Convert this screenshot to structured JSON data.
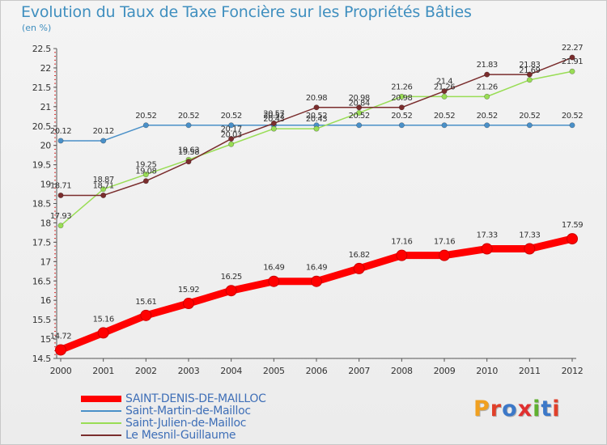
{
  "page": {
    "title": "Evolution du Taux de Taxe Foncière sur les Propriétés Bâties",
    "unit": "(en %)",
    "brand": "Proxiti",
    "brand_colors": [
      "#f0a020",
      "#e0402a",
      "#3c78c8",
      "#e03030",
      "#60b030",
      "#3c78c8",
      "#e0402a"
    ]
  },
  "chart_data": {
    "type": "line",
    "title": "Evolution du Taux de Taxe Foncière sur les Propriétés Bâties",
    "ylabel": "(en %)",
    "x": [
      "2000",
      "2001",
      "2002",
      "2003",
      "2004",
      "2005",
      "2006",
      "2007",
      "2008",
      "2009",
      "2010",
      "2011",
      "2012"
    ],
    "ylim": [
      14.5,
      22.5
    ],
    "yticks": [
      "14.5",
      "15",
      "15.5",
      "16",
      "16.5",
      "17",
      "17.5",
      "18",
      "18.5",
      "19",
      "19.5",
      "20",
      "20.5",
      "21",
      "21.5",
      "22",
      "22.5"
    ],
    "grid": false,
    "legend_position": "bottom-left",
    "series": [
      {
        "name": "SAINT-DENIS-DE-MAILLOC",
        "color": "#ff0000",
        "values": [
          14.72,
          15.16,
          15.61,
          15.92,
          16.25,
          16.49,
          16.49,
          16.82,
          17.16,
          17.16,
          17.33,
          17.33,
          17.59
        ],
        "labels": [
          "14.72",
          "15.16",
          "15.61",
          "15.92",
          "16.25",
          "16.49",
          "16.49",
          "16.82",
          "17.16",
          "17.16",
          "17.33",
          "17.33",
          "17.59"
        ]
      },
      {
        "name": "Saint-Martin-de-Mailloc",
        "color": "#4a90c8",
        "values": [
          20.12,
          20.12,
          20.52,
          20.52,
          20.52,
          20.52,
          20.52,
          20.52,
          20.52,
          20.52,
          20.52,
          20.52,
          20.52
        ],
        "labels": [
          "20.12",
          "20.12",
          "20.52",
          "20.52",
          "20.52",
          "20.52",
          "20.52",
          "20.52",
          "20.52",
          "20.52",
          "20.52",
          "20.52",
          "20.52"
        ]
      },
      {
        "name": "Saint-Julien-de-Mailloc",
        "color": "#99dd55",
        "values": [
          17.93,
          18.87,
          19.25,
          19.63,
          20.03,
          20.43,
          20.43,
          20.84,
          21.26,
          21.26,
          21.26,
          21.69,
          21.91
        ],
        "labels": [
          "17.93",
          "18.87",
          "19.25",
          "19.63",
          "20.03",
          "20.43",
          "20.43",
          "20.84",
          "21.26",
          "21.26",
          "21.26",
          "21.69",
          "21.91"
        ]
      },
      {
        "name": "Le Mesnil-Guillaume",
        "color": "#7a2d2d",
        "values": [
          18.71,
          18.71,
          19.08,
          19.58,
          20.17,
          20.57,
          20.98,
          20.98,
          20.98,
          21.4,
          21.83,
          21.83,
          22.27
        ],
        "labels": [
          "18.71",
          "18.71",
          "19.08",
          "19.58",
          "20.17",
          "20.57",
          "20.98",
          "20.98",
          "20.98",
          "21.4",
          "21.83",
          "21.83",
          "22.27"
        ]
      }
    ]
  }
}
